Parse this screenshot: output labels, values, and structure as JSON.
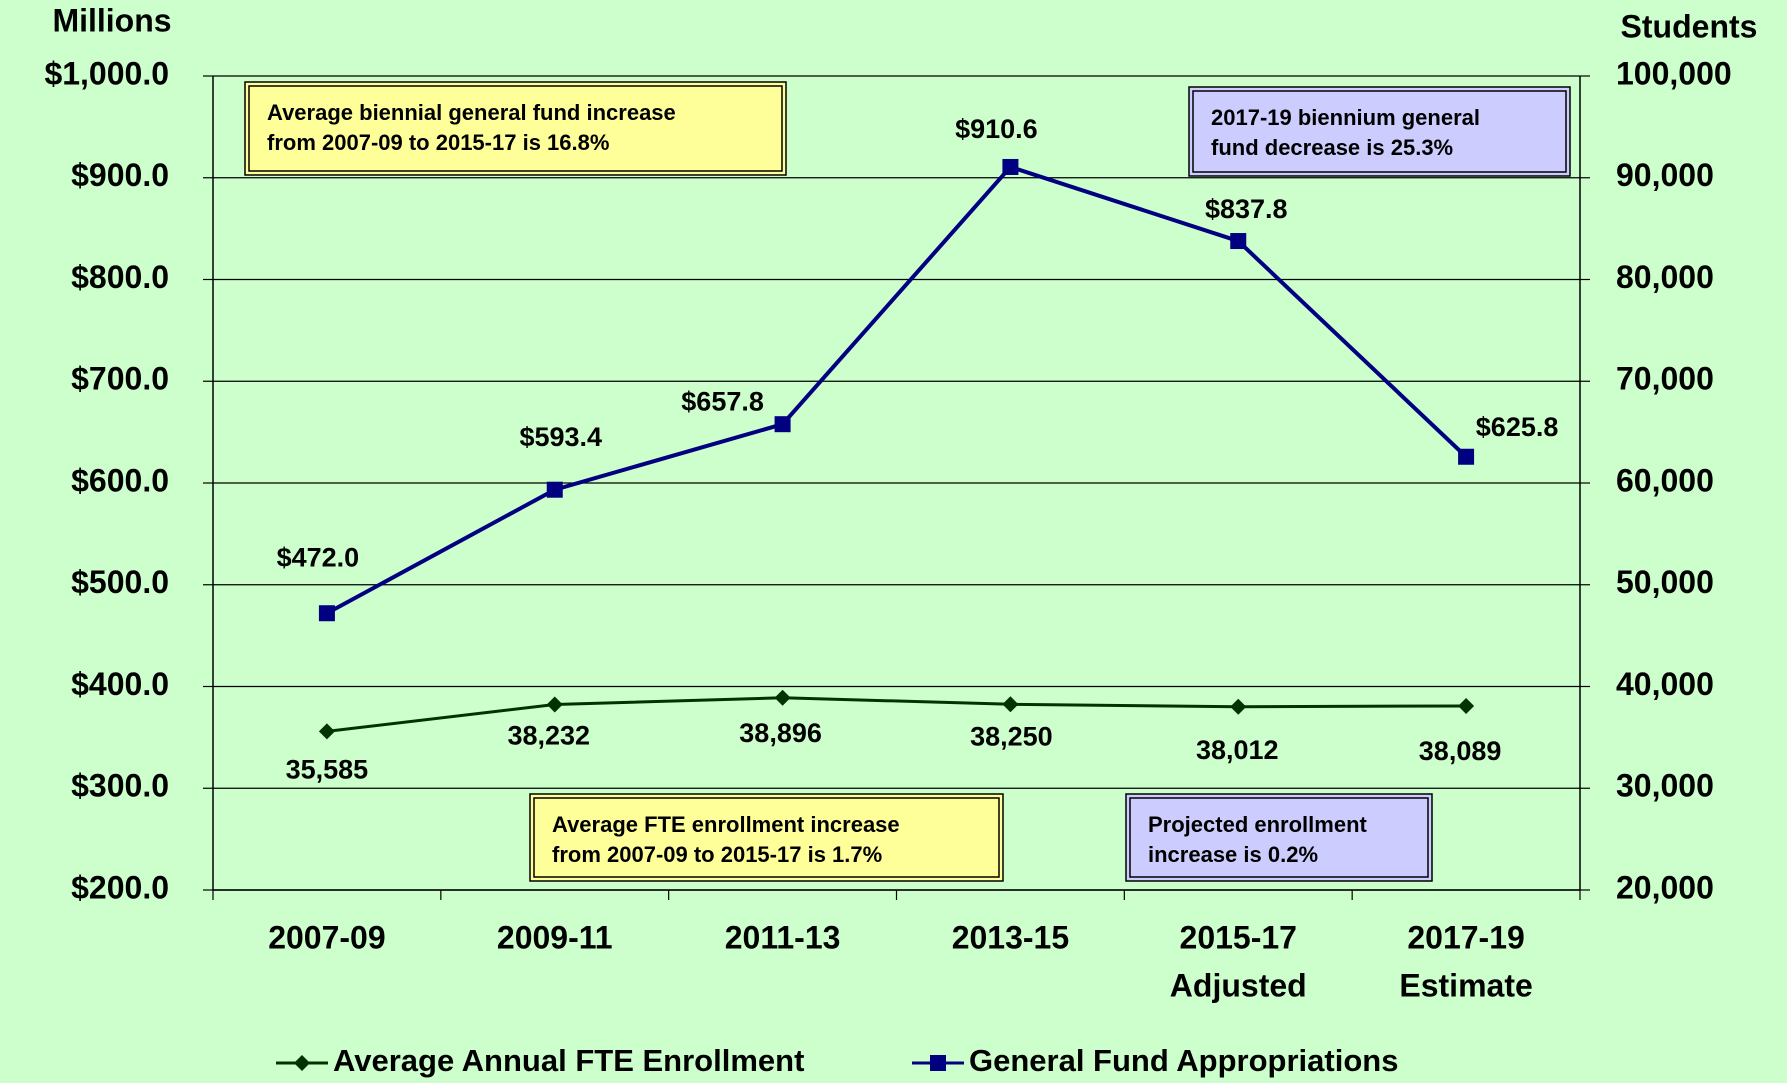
{
  "chart_data": {
    "type": "line",
    "y_axis_title": "Millions",
    "y2_axis_title": "Students",
    "categories": [
      [
        "2007-09"
      ],
      [
        "2009-11"
      ],
      [
        "2011-13"
      ],
      [
        "2013-15"
      ],
      [
        "2015-17",
        "Adjusted"
      ],
      [
        "2017-19",
        "Estimate"
      ]
    ],
    "ylim": [
      200,
      1000
    ],
    "yticks": [
      {
        "value": 200,
        "label": "$200.0"
      },
      {
        "value": 300,
        "label": "$300.0"
      },
      {
        "value": 400,
        "label": "$400.0"
      },
      {
        "value": 500,
        "label": "$500.0"
      },
      {
        "value": 600,
        "label": "$600.0"
      },
      {
        "value": 700,
        "label": "$700.0"
      },
      {
        "value": 800,
        "label": "$800.0"
      },
      {
        "value": 900,
        "label": "$900.0"
      },
      {
        "value": 1000,
        "label": "$1,000.0"
      }
    ],
    "y2lim": [
      20000,
      100000
    ],
    "y2ticks": [
      {
        "value": 20000,
        "label": "20,000"
      },
      {
        "value": 30000,
        "label": "30,000"
      },
      {
        "value": 40000,
        "label": "40,000"
      },
      {
        "value": 50000,
        "label": "50,000"
      },
      {
        "value": 60000,
        "label": "60,000"
      },
      {
        "value": 70000,
        "label": "70,000"
      },
      {
        "value": 80000,
        "label": "80,000"
      },
      {
        "value": 90000,
        "label": "90,000"
      },
      {
        "value": 100000,
        "label": "100,000"
      }
    ],
    "grid": true,
    "series": [
      {
        "name": "Average Annual FTE Enrollment",
        "color": "#003300",
        "marker": "diamond",
        "axis": "y2",
        "values": [
          35585,
          38232,
          38896,
          38250,
          38012,
          38089
        ],
        "value_labels": [
          "35,585",
          "38,232",
          "38,896",
          "38,250",
          "38,012",
          "38,089"
        ]
      },
      {
        "name": "General Fund Appropriations",
        "color": "#000080",
        "marker": "square",
        "values": [
          472.0,
          593.4,
          657.8,
          910.6,
          837.8,
          625.8
        ],
        "value_labels": [
          "$472.0",
          "$593.4",
          "$657.8",
          "$910.6",
          "$837.8",
          "$625.8"
        ]
      }
    ],
    "annotations": [
      {
        "lines": [
          "Average biennial general fund increase",
          "from 2007-09 to 2015-17 is 16.8%"
        ],
        "color": "#ffff99"
      },
      {
        "lines": [
          "2017-19  biennium  general",
          "fund decrease is 25.3%"
        ],
        "color": "#ccccff"
      },
      {
        "lines": [
          "Average FTE enrollment increase",
          "from 2007-09 to 2015-17 is 1.7%"
        ],
        "color": "#ffff99"
      },
      {
        "lines": [
          "Projected enrollment",
          "increase is 0.2%"
        ],
        "color": "#ccccff"
      }
    ]
  }
}
